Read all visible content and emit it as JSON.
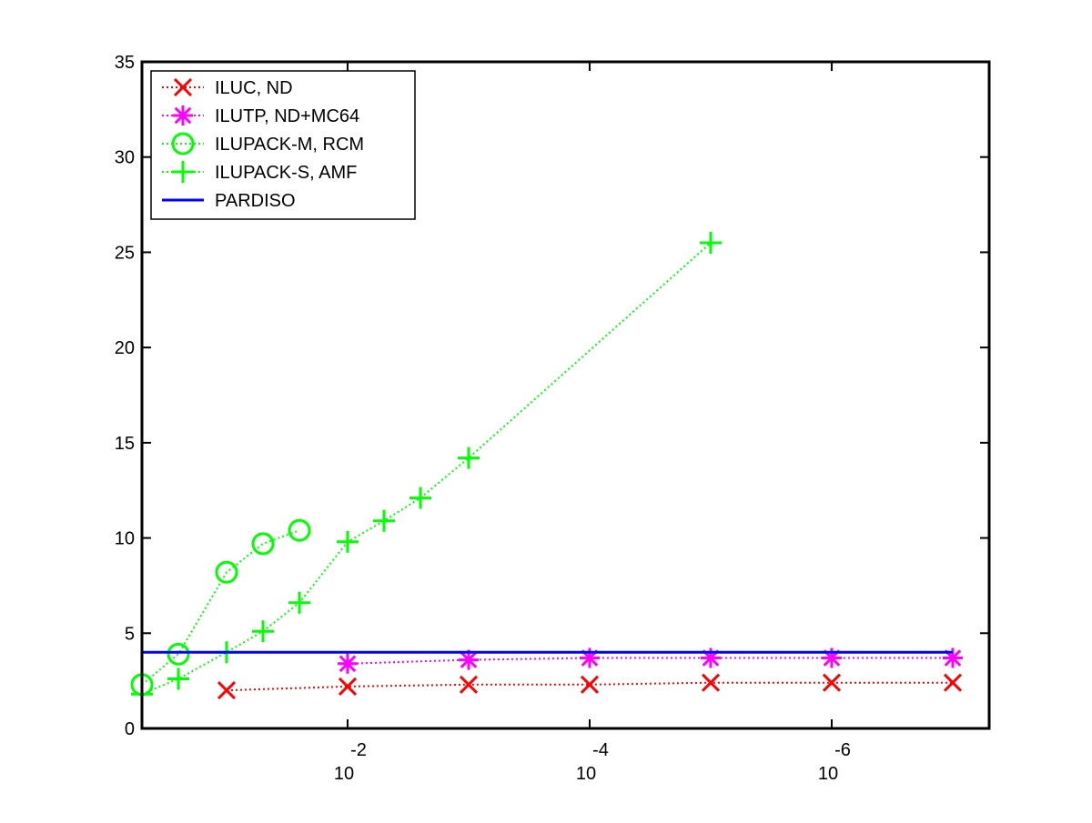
{
  "chart_data": {
    "type": "line",
    "title": "",
    "xlabel": "",
    "ylabel": "",
    "x_scale": "log-reversed",
    "xlim": [
      0.5,
      5e-08
    ],
    "ylim": [
      0,
      35
    ],
    "x_ticks": [
      {
        "value": 0.01,
        "base": "10",
        "exponent": "-2"
      },
      {
        "value": 0.0001,
        "base": "10",
        "exponent": "-4"
      },
      {
        "value": 1e-06,
        "base": "10",
        "exponent": "-6"
      }
    ],
    "y_ticks": [
      {
        "value": 0,
        "label": "0"
      },
      {
        "value": 5,
        "label": "5"
      },
      {
        "value": 10,
        "label": "10"
      },
      {
        "value": 15,
        "label": "15"
      },
      {
        "value": 20,
        "label": "20"
      },
      {
        "value": 25,
        "label": "25"
      },
      {
        "value": 30,
        "label": "30"
      },
      {
        "value": 35,
        "label": "35"
      }
    ],
    "grid": false,
    "legend_position": "top-left",
    "series": [
      {
        "name": "ILUC,  ND",
        "color": "#ff0000",
        "marker": "x",
        "line": "dotted",
        "points": [
          [
            0.1,
            2.0
          ],
          [
            0.01,
            2.2
          ],
          [
            0.001,
            2.3
          ],
          [
            0.0001,
            2.3
          ],
          [
            1e-05,
            2.4
          ],
          [
            1e-06,
            2.4
          ],
          [
            1e-07,
            2.4
          ]
        ]
      },
      {
        "name": "ILUTP,  ND+MC64",
        "color": "#ff00ff",
        "marker": "asterisk",
        "line": "dotted",
        "points": [
          [
            0.01,
            3.4
          ],
          [
            0.001,
            3.6
          ],
          [
            0.0001,
            3.7
          ],
          [
            1e-05,
            3.7
          ],
          [
            1e-06,
            3.7
          ],
          [
            1e-07,
            3.7
          ]
        ]
      },
      {
        "name": "ILUPACK-M, RCM",
        "color": "#00ff00",
        "marker": "circle",
        "line": "dotted",
        "points": [
          [
            0.5,
            2.3
          ],
          [
            0.25,
            3.9
          ],
          [
            0.1,
            8.2
          ],
          [
            0.05,
            9.7
          ],
          [
            0.025,
            10.4
          ]
        ]
      },
      {
        "name": "ILUPACK-S, AMF",
        "color": "#00ff00",
        "marker": "plus",
        "line": "dotted",
        "points": [
          [
            0.5,
            1.8
          ],
          [
            0.25,
            2.6
          ],
          [
            0.1,
            4.0
          ],
          [
            0.05,
            5.1
          ],
          [
            0.025,
            6.6
          ],
          [
            0.01,
            9.8
          ],
          [
            0.005,
            10.9
          ],
          [
            0.0025,
            12.1
          ],
          [
            0.001,
            14.2
          ],
          [
            1e-05,
            25.5
          ]
        ]
      },
      {
        "name": "PARDISO",
        "color": "#0000ff",
        "marker": "none",
        "line": "solid",
        "points": [
          [
            0.5,
            4.0
          ],
          [
            1e-07,
            4.0
          ]
        ]
      }
    ]
  }
}
